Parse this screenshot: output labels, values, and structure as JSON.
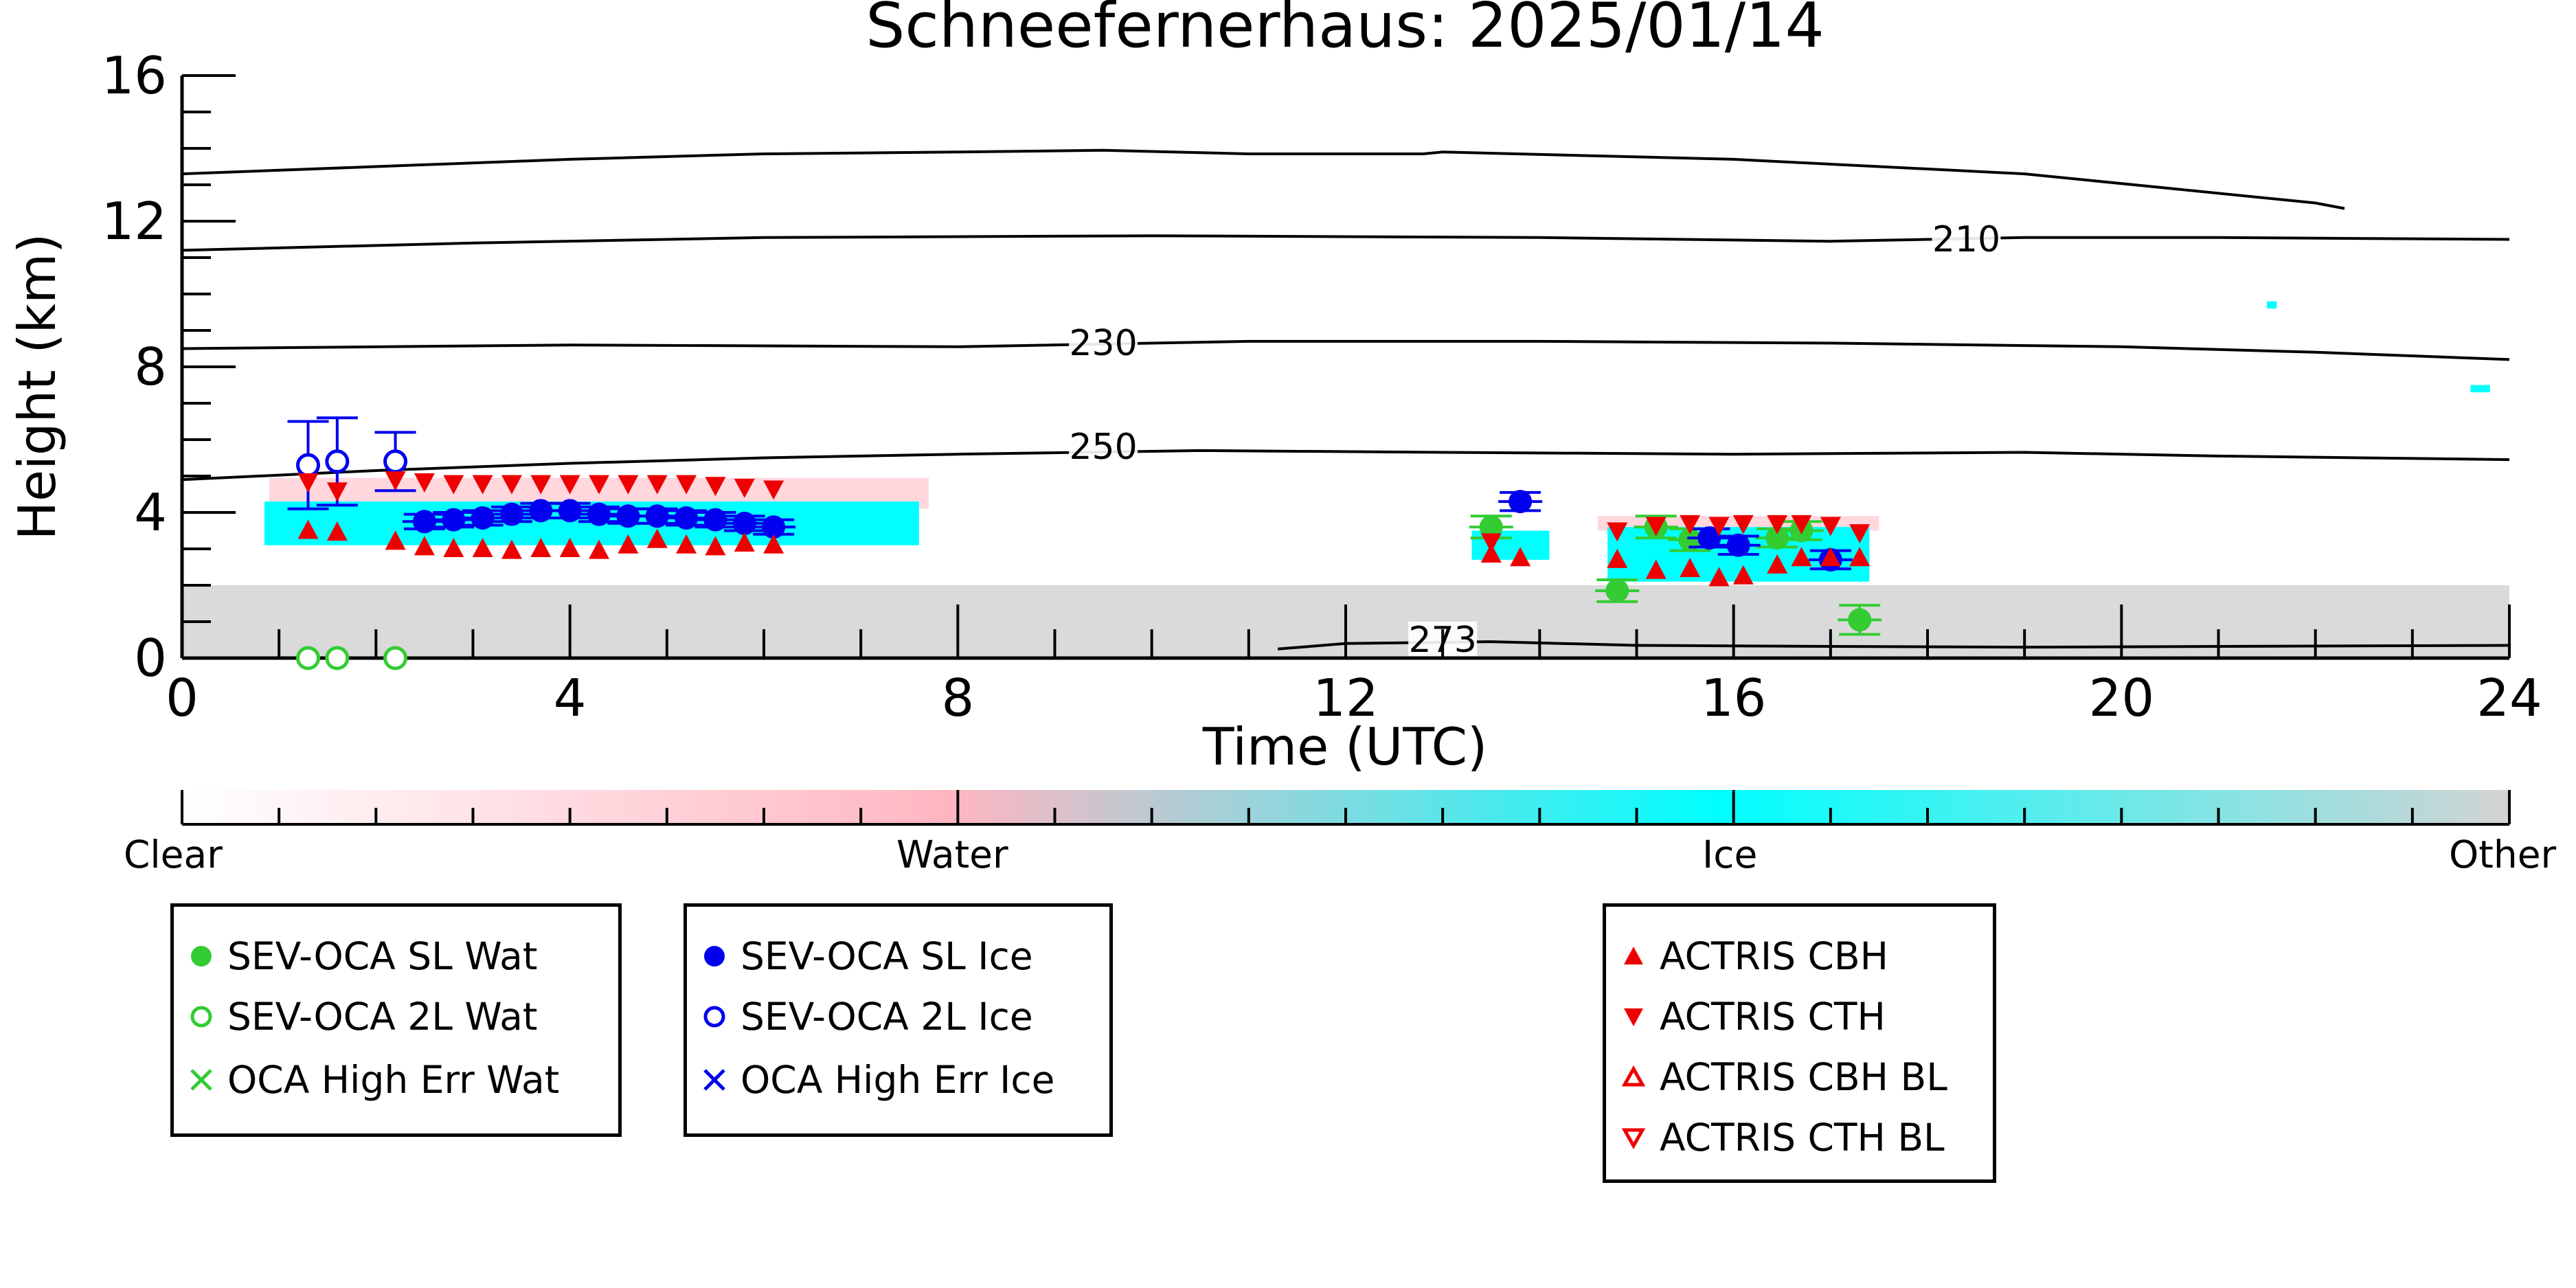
{
  "chart_data": {
    "type": "scatter",
    "title": "Schneefernerhaus: 2025/01/14",
    "xlabel": "Time (UTC)",
    "ylabel": "Height (km)",
    "xlim": [
      0,
      24
    ],
    "ylim": [
      0,
      16
    ],
    "x_ticks": [
      "0",
      "4",
      "8",
      "12",
      "16",
      "20",
      "24"
    ],
    "y_ticks": [
      "0",
      "4",
      "8",
      "12",
      "16"
    ],
    "contours": [
      {
        "label": "",
        "points": [
          [
            0,
            13.3
          ],
          [
            2,
            13.5
          ],
          [
            4,
            13.7
          ],
          [
            6,
            13.85
          ],
          [
            8,
            13.9
          ],
          [
            9.5,
            13.95
          ],
          [
            11,
            13.85
          ],
          [
            12.8,
            13.85
          ],
          [
            13,
            13.9
          ],
          [
            14.5,
            13.8
          ],
          [
            16,
            13.7
          ],
          [
            17.5,
            13.5
          ],
          [
            19,
            13.3
          ],
          [
            20.5,
            12.9
          ],
          [
            22,
            12.5
          ],
          [
            22.3,
            12.35
          ]
        ]
      },
      {
        "label": "210",
        "label_x": 18.4,
        "label_y": 11.4,
        "points": [
          [
            0,
            11.2
          ],
          [
            3,
            11.4
          ],
          [
            6,
            11.55
          ],
          [
            10,
            11.6
          ],
          [
            14,
            11.55
          ],
          [
            17,
            11.45
          ],
          [
            19,
            11.55
          ],
          [
            21,
            11.55
          ],
          [
            24,
            11.5
          ]
        ]
      },
      {
        "label": "230",
        "label_x": 9.5,
        "label_y": 8.55,
        "points": [
          [
            0,
            8.5
          ],
          [
            4,
            8.6
          ],
          [
            8,
            8.55
          ],
          [
            11,
            8.7
          ],
          [
            14,
            8.7
          ],
          [
            17,
            8.65
          ],
          [
            20,
            8.55
          ],
          [
            22,
            8.4
          ],
          [
            24,
            8.2
          ]
        ]
      },
      {
        "label": "250",
        "label_x": 9.5,
        "label_y": 5.7,
        "points": [
          [
            0,
            4.9
          ],
          [
            2,
            5.15
          ],
          [
            4,
            5.35
          ],
          [
            6,
            5.5
          ],
          [
            8,
            5.6
          ],
          [
            10.5,
            5.7
          ],
          [
            13,
            5.65
          ],
          [
            16,
            5.6
          ],
          [
            19,
            5.65
          ],
          [
            21,
            5.55
          ],
          [
            24,
            5.45
          ]
        ]
      },
      {
        "label": "273",
        "label_x": 13.0,
        "label_y": 0.4,
        "points": [
          [
            11.3,
            0.25
          ],
          [
            12,
            0.4
          ],
          [
            13.5,
            0.45
          ],
          [
            15,
            0.35
          ],
          [
            17,
            0.32
          ],
          [
            19,
            0.3
          ],
          [
            21,
            0.32
          ],
          [
            24,
            0.35
          ]
        ]
      }
    ],
    "mask_regions": [
      {
        "category": "Other",
        "x0": 0,
        "x1": 24,
        "y0": 0,
        "y1": 2.0,
        "opacity": 0.85
      },
      {
        "category": "Water",
        "x0": 0.9,
        "x1": 7.7,
        "y0": 4.1,
        "y1": 4.95,
        "opacity": 0.55
      },
      {
        "category": "Ice",
        "x0": 0.85,
        "x1": 7.6,
        "y0": 3.1,
        "y1": 4.3,
        "opacity": 1
      },
      {
        "category": "Ice",
        "x0": 13.3,
        "x1": 14.1,
        "y0": 2.7,
        "y1": 3.5,
        "opacity": 1
      },
      {
        "category": "Water",
        "x0": 14.6,
        "x1": 17.5,
        "y0": 3.5,
        "y1": 3.9,
        "opacity": 0.55
      },
      {
        "category": "Ice",
        "x0": 14.7,
        "x1": 17.4,
        "y0": 2.1,
        "y1": 3.6,
        "opacity": 1
      },
      {
        "category": "Ice",
        "x0": 23.6,
        "x1": 23.8,
        "y0": 7.3,
        "y1": 7.5,
        "opacity": 1
      },
      {
        "category": "Ice",
        "x0": 21.5,
        "x1": 21.6,
        "y0": 9.6,
        "y1": 9.8,
        "opacity": 1
      }
    ],
    "series": [
      {
        "name": "SEV-OCA SL Wat",
        "marker": "circle-filled",
        "color": "#33cc33",
        "points": [
          [
            13.5,
            3.6,
            0.3
          ],
          [
            14.8,
            1.85,
            0.3
          ],
          [
            15.2,
            3.6,
            0.3
          ],
          [
            15.55,
            3.25,
            0.3
          ],
          [
            16.45,
            3.3,
            0.25
          ],
          [
            16.7,
            3.5,
            0.25
          ],
          [
            17.3,
            1.05,
            0.4
          ]
        ]
      },
      {
        "name": "SEV-OCA 2L Wat",
        "marker": "circle-open",
        "color": "#33cc33",
        "points": [
          [
            1.3,
            0.0
          ],
          [
            1.6,
            0.0
          ],
          [
            2.2,
            0.0
          ]
        ]
      },
      {
        "name": "OCA High Err Wat",
        "marker": "x",
        "color": "#33cc33",
        "points": []
      },
      {
        "name": "SEV-OCA SL Ice",
        "marker": "circle-filled",
        "color": "#0000ee",
        "points": [
          [
            2.5,
            3.75,
            0.2
          ],
          [
            2.8,
            3.8,
            0.2
          ],
          [
            3.1,
            3.85,
            0.2
          ],
          [
            3.4,
            3.95,
            0.2
          ],
          [
            3.7,
            4.05,
            0.2
          ],
          [
            4.0,
            4.05,
            0.2
          ],
          [
            4.3,
            3.95,
            0.2
          ],
          [
            4.6,
            3.9,
            0.2
          ],
          [
            4.9,
            3.9,
            0.2
          ],
          [
            5.2,
            3.85,
            0.2
          ],
          [
            5.5,
            3.8,
            0.2
          ],
          [
            5.8,
            3.7,
            0.2
          ],
          [
            6.1,
            3.6,
            0.2
          ],
          [
            13.8,
            4.3,
            0.25
          ],
          [
            15.75,
            3.3,
            0.25
          ],
          [
            16.05,
            3.1,
            0.25
          ],
          [
            17.0,
            2.7,
            0.25
          ]
        ]
      },
      {
        "name": "SEV-OCA 2L Ice",
        "marker": "circle-open",
        "color": "#0000ee",
        "points": [
          [
            1.3,
            5.3,
            1.2
          ],
          [
            1.6,
            5.4,
            1.2
          ],
          [
            2.2,
            5.4,
            0.8
          ]
        ]
      },
      {
        "name": "OCA High Err Ice",
        "marker": "x",
        "color": "#0000ee",
        "points": []
      },
      {
        "name": "ACTRIS CBH",
        "marker": "triangle-up-filled",
        "color": "#ee0000",
        "points": [
          [
            1.3,
            3.5
          ],
          [
            1.6,
            3.45
          ],
          [
            2.2,
            3.2
          ],
          [
            2.5,
            3.05
          ],
          [
            2.8,
            3.0
          ],
          [
            3.1,
            3.0
          ],
          [
            3.4,
            2.95
          ],
          [
            3.7,
            3.0
          ],
          [
            4.0,
            3.0
          ],
          [
            4.3,
            2.95
          ],
          [
            4.6,
            3.1
          ],
          [
            4.9,
            3.25
          ],
          [
            5.2,
            3.1
          ],
          [
            5.5,
            3.05
          ],
          [
            5.8,
            3.15
          ],
          [
            6.1,
            3.1
          ],
          [
            13.5,
            2.85
          ],
          [
            13.8,
            2.75
          ],
          [
            14.8,
            2.7
          ],
          [
            15.2,
            2.4
          ],
          [
            15.55,
            2.45
          ],
          [
            15.85,
            2.2
          ],
          [
            16.1,
            2.25
          ],
          [
            16.45,
            2.55
          ],
          [
            16.7,
            2.75
          ],
          [
            17.0,
            2.75
          ],
          [
            17.3,
            2.75
          ]
        ]
      },
      {
        "name": "ACTRIS CTH",
        "marker": "triangle-down-filled",
        "color": "#ee0000",
        "points": [
          [
            1.3,
            4.85
          ],
          [
            1.6,
            4.6
          ],
          [
            2.2,
            4.9
          ],
          [
            2.5,
            4.85
          ],
          [
            2.8,
            4.8
          ],
          [
            3.1,
            4.8
          ],
          [
            3.4,
            4.8
          ],
          [
            3.7,
            4.8
          ],
          [
            4.0,
            4.8
          ],
          [
            4.3,
            4.8
          ],
          [
            4.6,
            4.8
          ],
          [
            4.9,
            4.8
          ],
          [
            5.2,
            4.8
          ],
          [
            5.5,
            4.75
          ],
          [
            5.8,
            4.7
          ],
          [
            6.1,
            4.65
          ],
          [
            13.5,
            3.2
          ],
          [
            14.8,
            3.5
          ],
          [
            15.2,
            3.65
          ],
          [
            15.55,
            3.7
          ],
          [
            15.85,
            3.65
          ],
          [
            16.1,
            3.7
          ],
          [
            16.45,
            3.7
          ],
          [
            16.7,
            3.7
          ],
          [
            17.0,
            3.65
          ],
          [
            17.3,
            3.45
          ]
        ]
      },
      {
        "name": "ACTRIS CBH BL",
        "marker": "triangle-up-open",
        "color": "#ee0000",
        "points": []
      },
      {
        "name": "ACTRIS CTH BL",
        "marker": "triangle-down-open",
        "color": "#ee0000",
        "points": []
      }
    ],
    "colorbar": {
      "labels": [
        "Clear",
        "Water",
        "Ice",
        "Other"
      ],
      "colors": {
        "Clear": "#ffffff",
        "Water": "#ffb6c1",
        "Ice": "#00ffff",
        "Other": "#d3d3d3"
      }
    }
  },
  "legend_groups": [
    {
      "items": [
        {
          "label": "SEV-OCA SL Wat",
          "marker": "circle-filled",
          "color": "#33cc33"
        },
        {
          "label": "SEV-OCA 2L Wat",
          "marker": "circle-open",
          "color": "#33cc33"
        },
        {
          "label": "OCA High Err Wat",
          "marker": "x",
          "color": "#33cc33"
        }
      ]
    },
    {
      "items": [
        {
          "label": "SEV-OCA SL Ice",
          "marker": "circle-filled",
          "color": "#0000ee"
        },
        {
          "label": "SEV-OCA 2L Ice",
          "marker": "circle-open",
          "color": "#0000ee"
        },
        {
          "label": "OCA High Err Ice",
          "marker": "x",
          "color": "#0000ee"
        }
      ]
    },
    {
      "items": [
        {
          "label": "ACTRIS CBH",
          "marker": "triangle-up-filled",
          "color": "#ee0000"
        },
        {
          "label": "ACTRIS CTH",
          "marker": "triangle-down-filled",
          "color": "#ee0000"
        },
        {
          "label": "ACTRIS CBH BL",
          "marker": "triangle-up-open",
          "color": "#ee0000"
        },
        {
          "label": "ACTRIS CTH BL",
          "marker": "triangle-down-open",
          "color": "#ee0000"
        }
      ]
    }
  ]
}
